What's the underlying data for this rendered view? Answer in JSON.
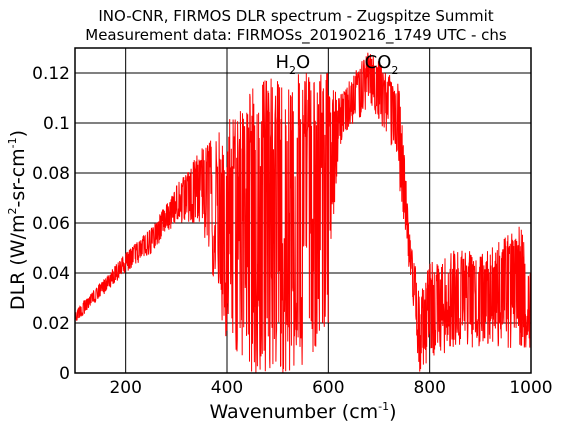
{
  "chart_data": {
    "type": "line",
    "title": "INO-CNR, FIRMOS DLR spectrum - Zugspitze Summit",
    "subtitle": "Measurement data: FIRMOSs_20190216_1749 UTC - chs",
    "xlabel": {
      "main": "Wavenumber (cm",
      "sup": "-1",
      "close": ")"
    },
    "ylabel": {
      "part1": "DLR (W/m",
      "sup1": "2",
      "part2": "-sr-cm",
      "sup2": "-1",
      "close": ")"
    },
    "xlim": [
      100,
      1000
    ],
    "ylim": [
      0,
      0.13
    ],
    "x_ticks": [
      200,
      400,
      600,
      800,
      1000
    ],
    "y_ticks": [
      0,
      0.02,
      0.04,
      0.06,
      0.08,
      0.1,
      0.12
    ],
    "x_tick_labels": [
      "200",
      "400",
      "600",
      "800",
      "1000"
    ],
    "y_tick_labels": [
      "0",
      "0.02",
      "0.04",
      "0.06",
      "0.08",
      "0.1",
      "0.12"
    ],
    "grid": true,
    "line_color": "#ff0000",
    "annotations": [
      {
        "base": "H",
        "sub": "2",
        "rest": "O",
        "x": 530,
        "y": 0.122
      },
      {
        "base": "CO",
        "sub": "2",
        "rest": "",
        "x": 705,
        "y": 0.122
      }
    ],
    "series": [
      {
        "envelope_upper_x": [
          100,
          150,
          200,
          250,
          300,
          350,
          400,
          450,
          500,
          550,
          600,
          620,
          650,
          680,
          700,
          720,
          740,
          760,
          780,
          800,
          850,
          900,
          950,
          980,
          1000
        ],
        "envelope_upper_y": [
          0.025,
          0.036,
          0.048,
          0.058,
          0.075,
          0.09,
          0.1,
          0.115,
          0.12,
          0.12,
          0.12,
          0.11,
          0.12,
          0.13,
          0.125,
          0.12,
          0.115,
          0.06,
          0.03,
          0.045,
          0.05,
          0.05,
          0.055,
          0.06,
          0.04
        ],
        "envelope_lower_x": [
          100,
          150,
          200,
          250,
          300,
          350,
          400,
          450,
          500,
          550,
          600,
          620,
          650,
          680,
          700,
          720,
          740,
          760,
          780,
          800,
          850,
          900,
          950,
          980,
          1000
        ],
        "envelope_lower_y": [
          0.02,
          0.03,
          0.04,
          0.048,
          0.06,
          0.06,
          0.01,
          0.0,
          0.0,
          0.0,
          0.02,
          0.09,
          0.1,
          0.105,
          0.1,
          0.095,
          0.075,
          0.04,
          0.0,
          0.005,
          0.01,
          0.01,
          0.01,
          0.01,
          0.01
        ]
      }
    ]
  }
}
